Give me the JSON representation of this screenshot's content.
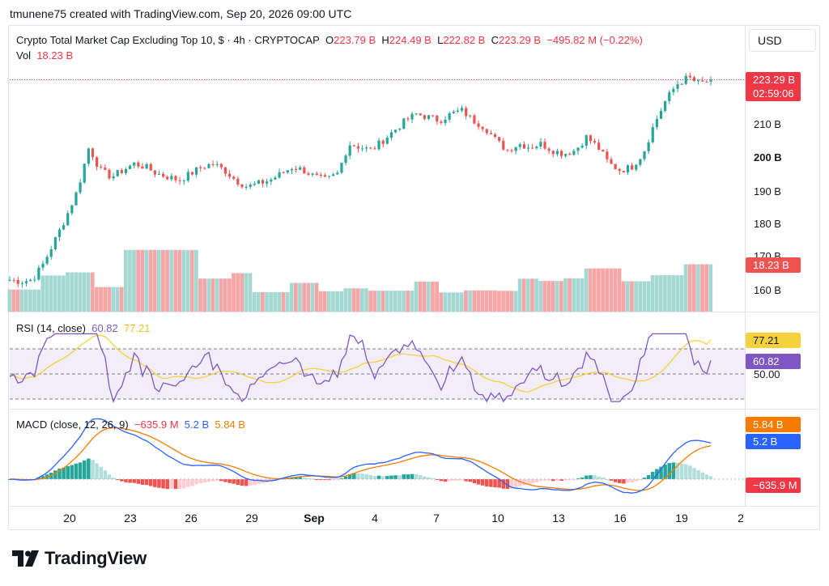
{
  "credit": "tmunene75 created with TradingView.com, Sep 20, 2026 09:00 UTC",
  "main_legend": {
    "title": "Crypto Total Market Cap Excluding Top 10, $ · 4h · CRYPTOCAP",
    "open_label": "O",
    "open": "223.79 B",
    "high_label": "H",
    "high": "224.49 B",
    "low_label": "L",
    "low": "222.82 B",
    "close_label": "C",
    "close": "223.29 B",
    "change": "−495.82 M (−0.22%)",
    "vol_label": "Vol",
    "vol": "18.23 B"
  },
  "currency_button": "USD",
  "price_ticks": [
    "210 B",
    "200 B",
    "190 B",
    "180 B",
    "170 B",
    "160 B"
  ],
  "price_tags": {
    "last_price": "223.29 B",
    "countdown": "02:59:06",
    "volume": "18.23 B"
  },
  "rsi": {
    "label": "RSI (14, close)",
    "value": "60.82",
    "ma": "77.21",
    "tick_mid": "50.00",
    "tag_ma": "77.21",
    "tag_value": "60.82"
  },
  "macd": {
    "label": "MACD (close, 12, 26, 9)",
    "hist": "−635.9 M",
    "macd": "5.2 B",
    "signal": "5.84 B",
    "tag_signal": "5.84 B",
    "tag_macd": "5.2 B",
    "tag_hist": "−635.9 M"
  },
  "x_labels": [
    "20",
    "23",
    "26",
    "29",
    "Sep",
    "4",
    "7",
    "10",
    "13",
    "16",
    "19",
    "2"
  ],
  "brand": "TradingView",
  "colors": {
    "up": "#26a69a",
    "down": "#ef5350",
    "rsi": "#7e57c2",
    "rsi_ma": "#f5d13d",
    "macd": "#2962ff",
    "signal": "#f57c00",
    "last_price": "#f23645"
  },
  "chart_data": {
    "type": "candlestick",
    "title": "Crypto Total Market Cap Excluding Top 10, $ · 4h · CRYPTOCAP",
    "unit": "B USD",
    "ylim": [
      155,
      228
    ],
    "x_labels": [
      "20",
      "23",
      "26",
      "29",
      "Sep",
      "4",
      "7",
      "10",
      "13",
      "16",
      "19",
      "2"
    ],
    "price_path": [
      163,
      162.5,
      163,
      168,
      175,
      182,
      190,
      203,
      196,
      194,
      196,
      198,
      197,
      195,
      194,
      193,
      195,
      197,
      198,
      196,
      193,
      191,
      192,
      193,
      195,
      197,
      196,
      194,
      193,
      195,
      204,
      203,
      202,
      205,
      208,
      211,
      213,
      212,
      211,
      213,
      214,
      211,
      209,
      205,
      202,
      204,
      203,
      204,
      202,
      201,
      202,
      206,
      203,
      198,
      196,
      197,
      201,
      210,
      217,
      222,
      224,
      222,
      223.29
    ],
    "last": 223.29,
    "rsi": {
      "levels": [
        70,
        50,
        30
      ],
      "last": 60.82,
      "ma_last": 77.21
    },
    "macd": {
      "last_macd": 5.2,
      "last_signal": 5.84,
      "last_hist": -0.6359
    }
  }
}
